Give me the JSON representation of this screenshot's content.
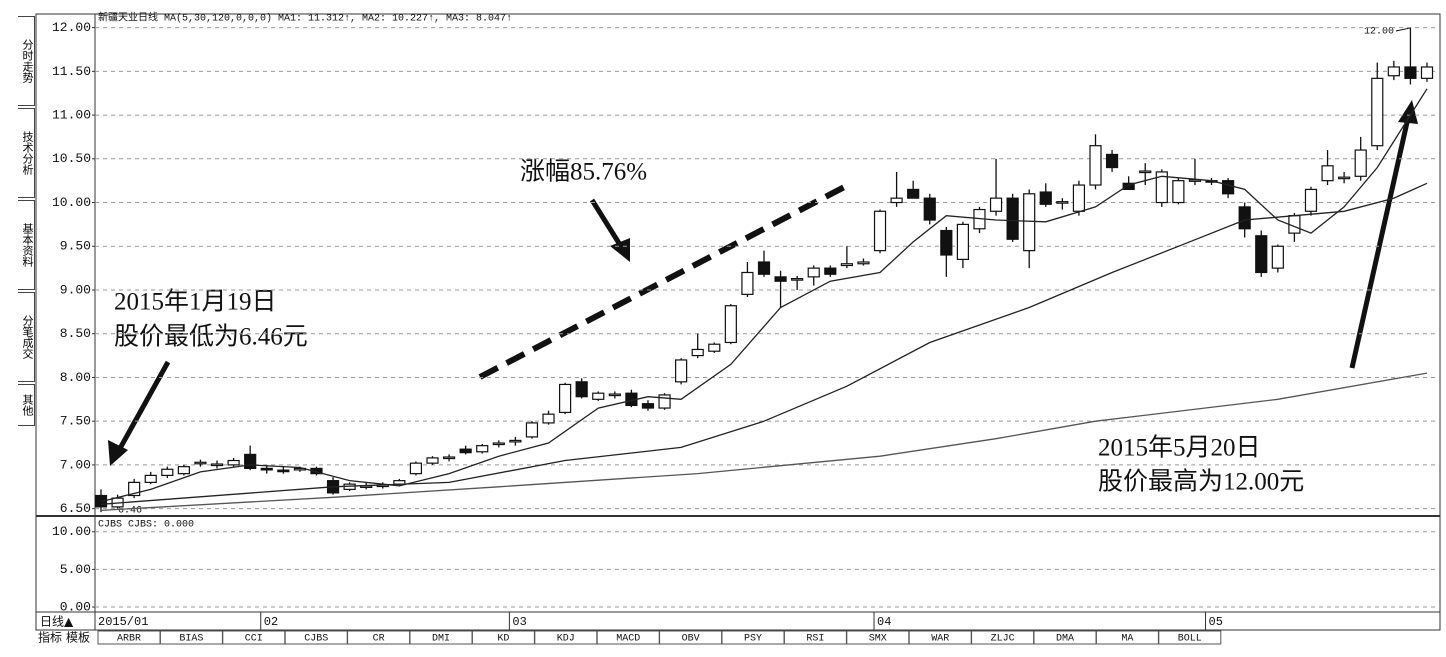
{
  "chart_data": {
    "type": "candlestick",
    "header": "新疆天业日线 MA(5,30,120,0,0,0) MA1: 11.312↑, MA2: 10.227↑, MA3: 8.047↑",
    "categories": [
      "2015/01",
      null,
      null,
      null,
      null,
      null,
      null,
      null,
      null,
      null,
      "02",
      null,
      null,
      null,
      null,
      null,
      null,
      null,
      null,
      null,
      null,
      null,
      null,
      null,
      null,
      "03",
      null,
      null,
      null,
      null,
      null,
      null,
      null,
      null,
      null,
      null,
      null,
      null,
      null,
      null,
      null,
      null,
      null,
      null,
      null,
      null,
      null,
      "04",
      null,
      null,
      null,
      null,
      null,
      null,
      null,
      null,
      null,
      null,
      null,
      null,
      null,
      null,
      null,
      null,
      null,
      null,
      null,
      "05",
      null,
      null,
      null,
      null,
      null,
      null,
      null,
      null,
      null,
      null,
      null,
      null,
      null
    ],
    "open": [
      6.65,
      6.52,
      6.65,
      6.8,
      6.88,
      6.9,
      7.02,
      7.0,
      7.0,
      7.12,
      6.96,
      6.94,
      6.95,
      6.96,
      6.82,
      6.72,
      6.75,
      6.76,
      6.78,
      6.9,
      7.02,
      7.08,
      7.18,
      7.15,
      7.24,
      7.27,
      7.32,
      7.48,
      7.6,
      7.95,
      7.75,
      7.8,
      7.82,
      7.7,
      7.65,
      7.95,
      8.25,
      8.3,
      8.4,
      8.95,
      9.32,
      9.15,
      9.12,
      9.15,
      9.25,
      9.28,
      9.3,
      9.45,
      10.0,
      10.15,
      10.05,
      9.68,
      9.35,
      9.7,
      9.9,
      10.05,
      9.45,
      10.12,
      10.0,
      9.9,
      10.2,
      10.55,
      10.22,
      10.35,
      10.0,
      10.0,
      10.25,
      10.25,
      10.25,
      9.95,
      9.62,
      9.25,
      9.65,
      9.9,
      10.25,
      10.28,
      10.3,
      10.65,
      11.45,
      11.55,
      11.42
    ],
    "high": [
      6.72,
      6.66,
      6.84,
      6.92,
      6.98,
      7.0,
      7.06,
      7.05,
      7.08,
      7.22,
      7.0,
      6.98,
      6.98,
      6.98,
      6.86,
      6.8,
      6.8,
      6.8,
      6.84,
      7.04,
      7.1,
      7.12,
      7.22,
      7.24,
      7.28,
      7.32,
      7.5,
      7.62,
      7.94,
      7.99,
      7.84,
      7.84,
      7.86,
      7.74,
      7.82,
      8.22,
      8.5,
      8.4,
      8.84,
      9.32,
      9.45,
      9.22,
      9.16,
      9.28,
      9.28,
      9.5,
      9.36,
      9.92,
      10.35,
      10.25,
      10.1,
      9.72,
      9.78,
      9.95,
      10.5,
      10.1,
      10.15,
      10.22,
      10.05,
      10.25,
      10.78,
      10.6,
      10.3,
      10.45,
      10.38,
      10.28,
      10.5,
      10.28,
      10.28,
      10.0,
      9.68,
      9.52,
      9.88,
      10.18,
      10.6,
      10.35,
      10.75,
      11.6,
      11.62,
      12.0,
      11.6
    ],
    "low": [
      6.46,
      6.5,
      6.62,
      6.78,
      6.85,
      6.88,
      6.98,
      6.96,
      6.98,
      6.94,
      6.9,
      6.9,
      6.92,
      6.88,
      6.66,
      6.7,
      6.72,
      6.73,
      6.76,
      6.88,
      7.0,
      7.04,
      7.12,
      7.13,
      7.2,
      7.22,
      7.3,
      7.46,
      7.58,
      7.76,
      7.73,
      7.76,
      7.66,
      7.62,
      7.63,
      7.92,
      8.22,
      8.28,
      8.38,
      8.92,
      9.15,
      8.8,
      9.0,
      9.05,
      9.15,
      9.25,
      9.28,
      9.42,
      9.95,
      10.05,
      9.75,
      9.15,
      9.25,
      9.65,
      9.85,
      9.55,
      9.25,
      9.95,
      9.92,
      9.85,
      10.15,
      10.35,
      10.15,
      10.2,
      9.95,
      9.98,
      10.2,
      10.2,
      10.05,
      9.6,
      9.15,
      9.2,
      9.55,
      9.85,
      10.2,
      10.22,
      10.25,
      10.6,
      11.4,
      11.35,
      11.38
    ],
    "close": [
      6.52,
      6.62,
      6.8,
      6.88,
      6.95,
      6.98,
      7.03,
      7.01,
      7.05,
      6.96,
      6.95,
      6.93,
      6.96,
      6.9,
      6.68,
      6.78,
      6.76,
      6.77,
      6.82,
      7.02,
      7.08,
      7.09,
      7.14,
      7.22,
      7.25,
      7.28,
      7.48,
      7.58,
      7.92,
      7.78,
      7.82,
      7.81,
      7.68,
      7.65,
      7.8,
      8.2,
      8.32,
      8.38,
      8.82,
      9.2,
      9.18,
      9.1,
      9.13,
      9.25,
      9.18,
      9.3,
      9.32,
      9.9,
      10.05,
      10.05,
      9.8,
      9.4,
      9.75,
      9.92,
      10.05,
      9.58,
      10.1,
      9.98,
      10.01,
      10.2,
      10.65,
      10.4,
      10.15,
      10.36,
      10.35,
      10.25,
      10.26,
      10.24,
      10.1,
      9.7,
      9.2,
      9.5,
      9.85,
      10.15,
      10.42,
      10.29,
      10.6,
      11.42,
      11.55,
      11.42,
      11.55
    ],
    "up_color": "#ffffff",
    "down_color": "#111111",
    "ma_lines": [
      {
        "name": "MA1",
        "color": "#222222",
        "x": [
          0,
          3,
          6,
          9,
          12,
          15,
          18,
          21,
          24,
          27,
          30,
          33,
          35,
          38,
          41,
          44,
          47,
          49,
          51,
          54,
          57,
          60,
          62,
          64,
          67,
          69,
          71,
          73,
          75,
          77,
          79,
          80
        ],
        "values": [
          6.58,
          6.72,
          6.92,
          7.0,
          6.97,
          6.82,
          6.76,
          6.9,
          7.1,
          7.25,
          7.65,
          7.78,
          7.75,
          8.15,
          8.8,
          9.1,
          9.2,
          9.55,
          9.85,
          9.8,
          9.78,
          9.95,
          10.2,
          10.3,
          10.25,
          10.15,
          9.8,
          9.65,
          9.95,
          10.4,
          11.0,
          11.3
        ]
      },
      {
        "name": "MA2",
        "color": "#222222",
        "x": [
          0,
          14,
          21,
          28,
          35,
          40,
          45,
          50,
          56,
          61,
          65,
          69,
          75,
          78,
          80
        ],
        "values": [
          6.55,
          6.75,
          6.8,
          7.05,
          7.2,
          7.5,
          7.9,
          8.4,
          8.8,
          9.2,
          9.5,
          9.8,
          9.9,
          10.05,
          10.22
        ]
      },
      {
        "name": "MA3",
        "color": "#555555",
        "x": [
          0,
          14,
          24,
          36,
          47,
          54,
          60,
          71,
          80
        ],
        "values": [
          6.48,
          6.63,
          6.75,
          6.9,
          7.1,
          7.3,
          7.5,
          7.75,
          8.05
        ]
      }
    ],
    "ylim": [
      6.45,
      12.11
    ],
    "yticks": [
      {
        "value": 6.5,
        "label": "6.50"
      },
      {
        "value": 7,
        "label": "7.00"
      },
      {
        "value": 7.5,
        "label": "7.50"
      },
      {
        "value": 8,
        "label": "8.00"
      },
      {
        "value": 8.5,
        "label": "8.50"
      },
      {
        "value": 9,
        "label": "9.00"
      },
      {
        "value": 9.5,
        "label": "9.50"
      },
      {
        "value": 10,
        "label": "10.00"
      },
      {
        "value": 10.5,
        "label": "10.50"
      },
      {
        "value": 11,
        "label": "11.00"
      },
      {
        "value": 11.5,
        "label": "11.50"
      },
      {
        "value": 12,
        "label": "12.00"
      }
    ],
    "grid": true,
    "annotations": {
      "gain": "涨幅85.76%",
      "low_date": "2015年1月19日",
      "low_text": "股价最低为6.46元",
      "high_date": "2015年5月20日",
      "high_text": "股价最高为12.00元",
      "high_mark": "12.00",
      "low_mark": "6.46"
    }
  },
  "volume_panel": {
    "label": "CJBS CJBS: 0.000",
    "ylim": [
      0,
      11.7
    ],
    "yticks": [
      {
        "value": 0,
        "label": "0.00"
      },
      {
        "value": 5,
        "label": "5.00"
      },
      {
        "value": 10,
        "label": "10.00"
      }
    ]
  },
  "ui": {
    "side_tabs": [
      "分时走势",
      "技术分析",
      "基本资料",
      "分笔成交",
      "其他"
    ],
    "period": "日线▲",
    "tab_left": [
      "指标",
      "模板"
    ],
    "indicator_tabs": [
      "ARBR",
      "BIAS",
      "CCI",
      "CJBS",
      "CR",
      "DMI",
      "KD",
      "KDJ",
      "MACD",
      "OBV",
      "PSY",
      "RSI",
      "SMX",
      "WAR",
      "ZLJC",
      "DMA",
      "MA",
      "BOLL"
    ]
  }
}
